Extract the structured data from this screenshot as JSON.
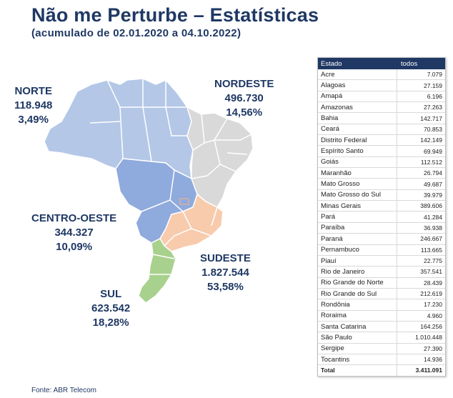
{
  "header": {
    "title": "Não me Perturbe – Estatísticas",
    "subtitle": "(acumulado de 02.01.2020 a 04.10.2022)"
  },
  "source": "Fonte: ABR Telecom",
  "colors": {
    "title": "#1f3864",
    "norte": "#b4c7e7",
    "nordeste": "#d9d9d9",
    "centro_oeste": "#8faadc",
    "sudeste": "#f8cbad",
    "sul": "#a9d18e",
    "table_header": "#1f3864"
  },
  "chart_data": {
    "type": "table",
    "title": "Não me Perturbe – Estatísticas",
    "regions": [
      {
        "key": "norte",
        "name": "NORTE",
        "value": "118.948",
        "percent": "3,49%"
      },
      {
        "key": "nordeste",
        "name": "NORDESTE",
        "value": "496.730",
        "percent": "14,56%"
      },
      {
        "key": "centro_oeste",
        "name": "CENTRO-OESTE",
        "value": "344.327",
        "percent": "10,09%"
      },
      {
        "key": "sudeste",
        "name": "SUDESTE",
        "value": "1.827.544",
        "percent": "53,58%"
      },
      {
        "key": "sul",
        "name": "SUL",
        "value": "623.542",
        "percent": "18,28%"
      }
    ],
    "table": {
      "columns": [
        "Estado",
        "todos"
      ],
      "rows": [
        [
          "Acre",
          "7.079"
        ],
        [
          "Alagoas",
          "27.159"
        ],
        [
          "Amapá",
          "6.196"
        ],
        [
          "Amazonas",
          "27.263"
        ],
        [
          "Bahia",
          "142.717"
        ],
        [
          "Ceará",
          "70.853"
        ],
        [
          "Distrito Federal",
          "142.149"
        ],
        [
          "Espírito Santo",
          "69.949"
        ],
        [
          "Goiás",
          "112.512"
        ],
        [
          "Maranhão",
          "26.794"
        ],
        [
          "Mato Grosso",
          "49.687"
        ],
        [
          "Mato Grosso do Sul",
          "39.979"
        ],
        [
          "Minas Gerais",
          "389.606"
        ],
        [
          "Pará",
          "41.284"
        ],
        [
          "Paraíba",
          "36.938"
        ],
        [
          "Paraná",
          "246.667"
        ],
        [
          "Pernambuco",
          "113.665"
        ],
        [
          "Piauí",
          "22.775"
        ],
        [
          "Rio de Janeiro",
          "357.541"
        ],
        [
          "Rio Grande do Norte",
          "28.439"
        ],
        [
          "Rio Grande do Sul",
          "212.619"
        ],
        [
          "Rondônia",
          "17.230"
        ],
        [
          "Roraima",
          "4.960"
        ],
        [
          "Santa Catarina",
          "164.256"
        ],
        [
          "São Paulo",
          "1.010.448"
        ],
        [
          "Sergipe",
          "27.390"
        ],
        [
          "Tocantins",
          "14.936"
        ]
      ],
      "total": [
        "Total",
        "3.411.091"
      ]
    }
  }
}
